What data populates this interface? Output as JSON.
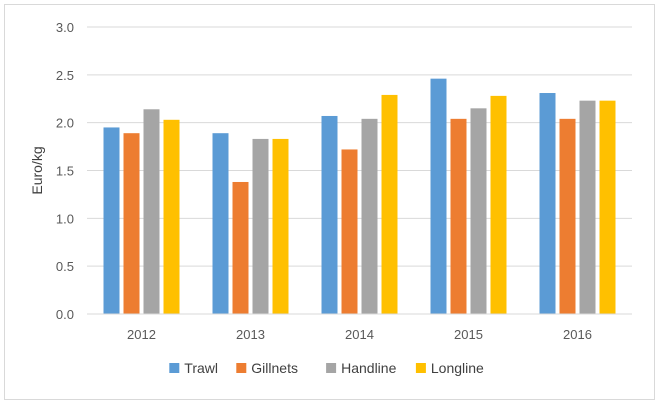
{
  "chart_data": {
    "type": "bar",
    "title": "",
    "xlabel": "",
    "ylabel": "Euro/kg",
    "ylim": [
      0,
      3.0
    ],
    "yticks": [
      "0.0",
      "0.5",
      "1.0",
      "1.5",
      "2.0",
      "2.5",
      "3.0"
    ],
    "categories": [
      "2012",
      "2013",
      "2014",
      "2015",
      "2016"
    ],
    "series": [
      {
        "name": "Trawl",
        "color": "#5b9bd5",
        "values": [
          1.95,
          1.89,
          2.07,
          2.46,
          2.31
        ]
      },
      {
        "name": "Gillnets",
        "color": "#ed7d31",
        "values": [
          1.89,
          1.38,
          1.72,
          2.04,
          2.04
        ]
      },
      {
        "name": "Handline",
        "color": "#a5a5a5",
        "values": [
          2.14,
          1.83,
          2.04,
          2.15,
          2.23
        ]
      },
      {
        "name": "Longline",
        "color": "#ffc000",
        "values": [
          2.03,
          1.83,
          2.29,
          2.28,
          2.23
        ]
      }
    ],
    "grid": true,
    "gridColor": "#d9d9d9",
    "legend": "bottom"
  }
}
